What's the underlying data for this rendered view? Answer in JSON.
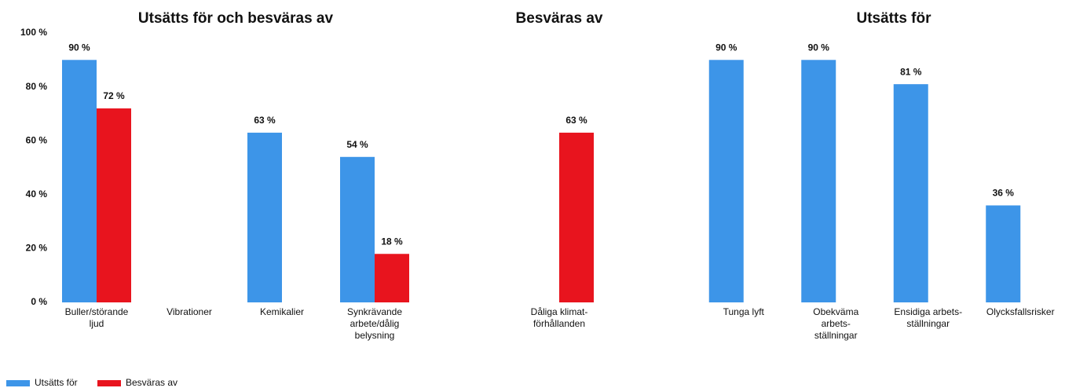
{
  "legend": [
    {
      "name": "Utsätts för",
      "color": "#3d95e8"
    },
    {
      "name": "Besväras av",
      "color": "#e8141e"
    }
  ],
  "chart_data": [
    {
      "type": "bar",
      "title": "Utsätts för och besväras av",
      "categories": [
        "Buller/störande\nljud",
        "Vibrationer",
        "Kemikalier",
        "Synkrävande\narbete/dålig\nbelysning"
      ],
      "series": [
        {
          "color": "#3d95e8",
          "values": [
            90,
            null,
            63,
            54
          ],
          "value_labels": [
            "90 %",
            null,
            "63 %",
            "54 %"
          ]
        },
        {
          "color": "#e8141e",
          "values": [
            72,
            null,
            null,
            18
          ],
          "value_labels": [
            "72 %",
            null,
            null,
            "18 %"
          ]
        }
      ],
      "ylim": [
        0,
        100
      ],
      "yticks": [
        {
          "value": 0,
          "label": "0 %"
        },
        {
          "value": 20,
          "label": "20 %"
        },
        {
          "value": 40,
          "label": "40 %"
        },
        {
          "value": 60,
          "label": "60 %"
        },
        {
          "value": 80,
          "label": "80 %"
        },
        {
          "value": 100,
          "label": "100 %"
        }
      ]
    },
    {
      "type": "bar",
      "title": "Besväras av",
      "categories": [
        "Dåliga klimat-\nförhållanden"
      ],
      "series": [
        {
          "color": "#e8141e",
          "values": [
            63
          ],
          "value_labels": [
            "63 %"
          ]
        }
      ],
      "ylim": [
        0,
        100
      ]
    },
    {
      "type": "bar",
      "title": "Utsätts för",
      "categories": [
        "Tunga lyft",
        "Obekväma\narbets-\nställningar",
        "Ensidiga arbets-\nställningar",
        "Olycksfallsrisker"
      ],
      "series": [
        {
          "color": "#3d95e8",
          "values": [
            90,
            90,
            81,
            36
          ],
          "value_labels": [
            "90 %",
            "90 %",
            "81 %",
            "36 %"
          ]
        }
      ],
      "ylim": [
        0,
        100
      ]
    }
  ]
}
